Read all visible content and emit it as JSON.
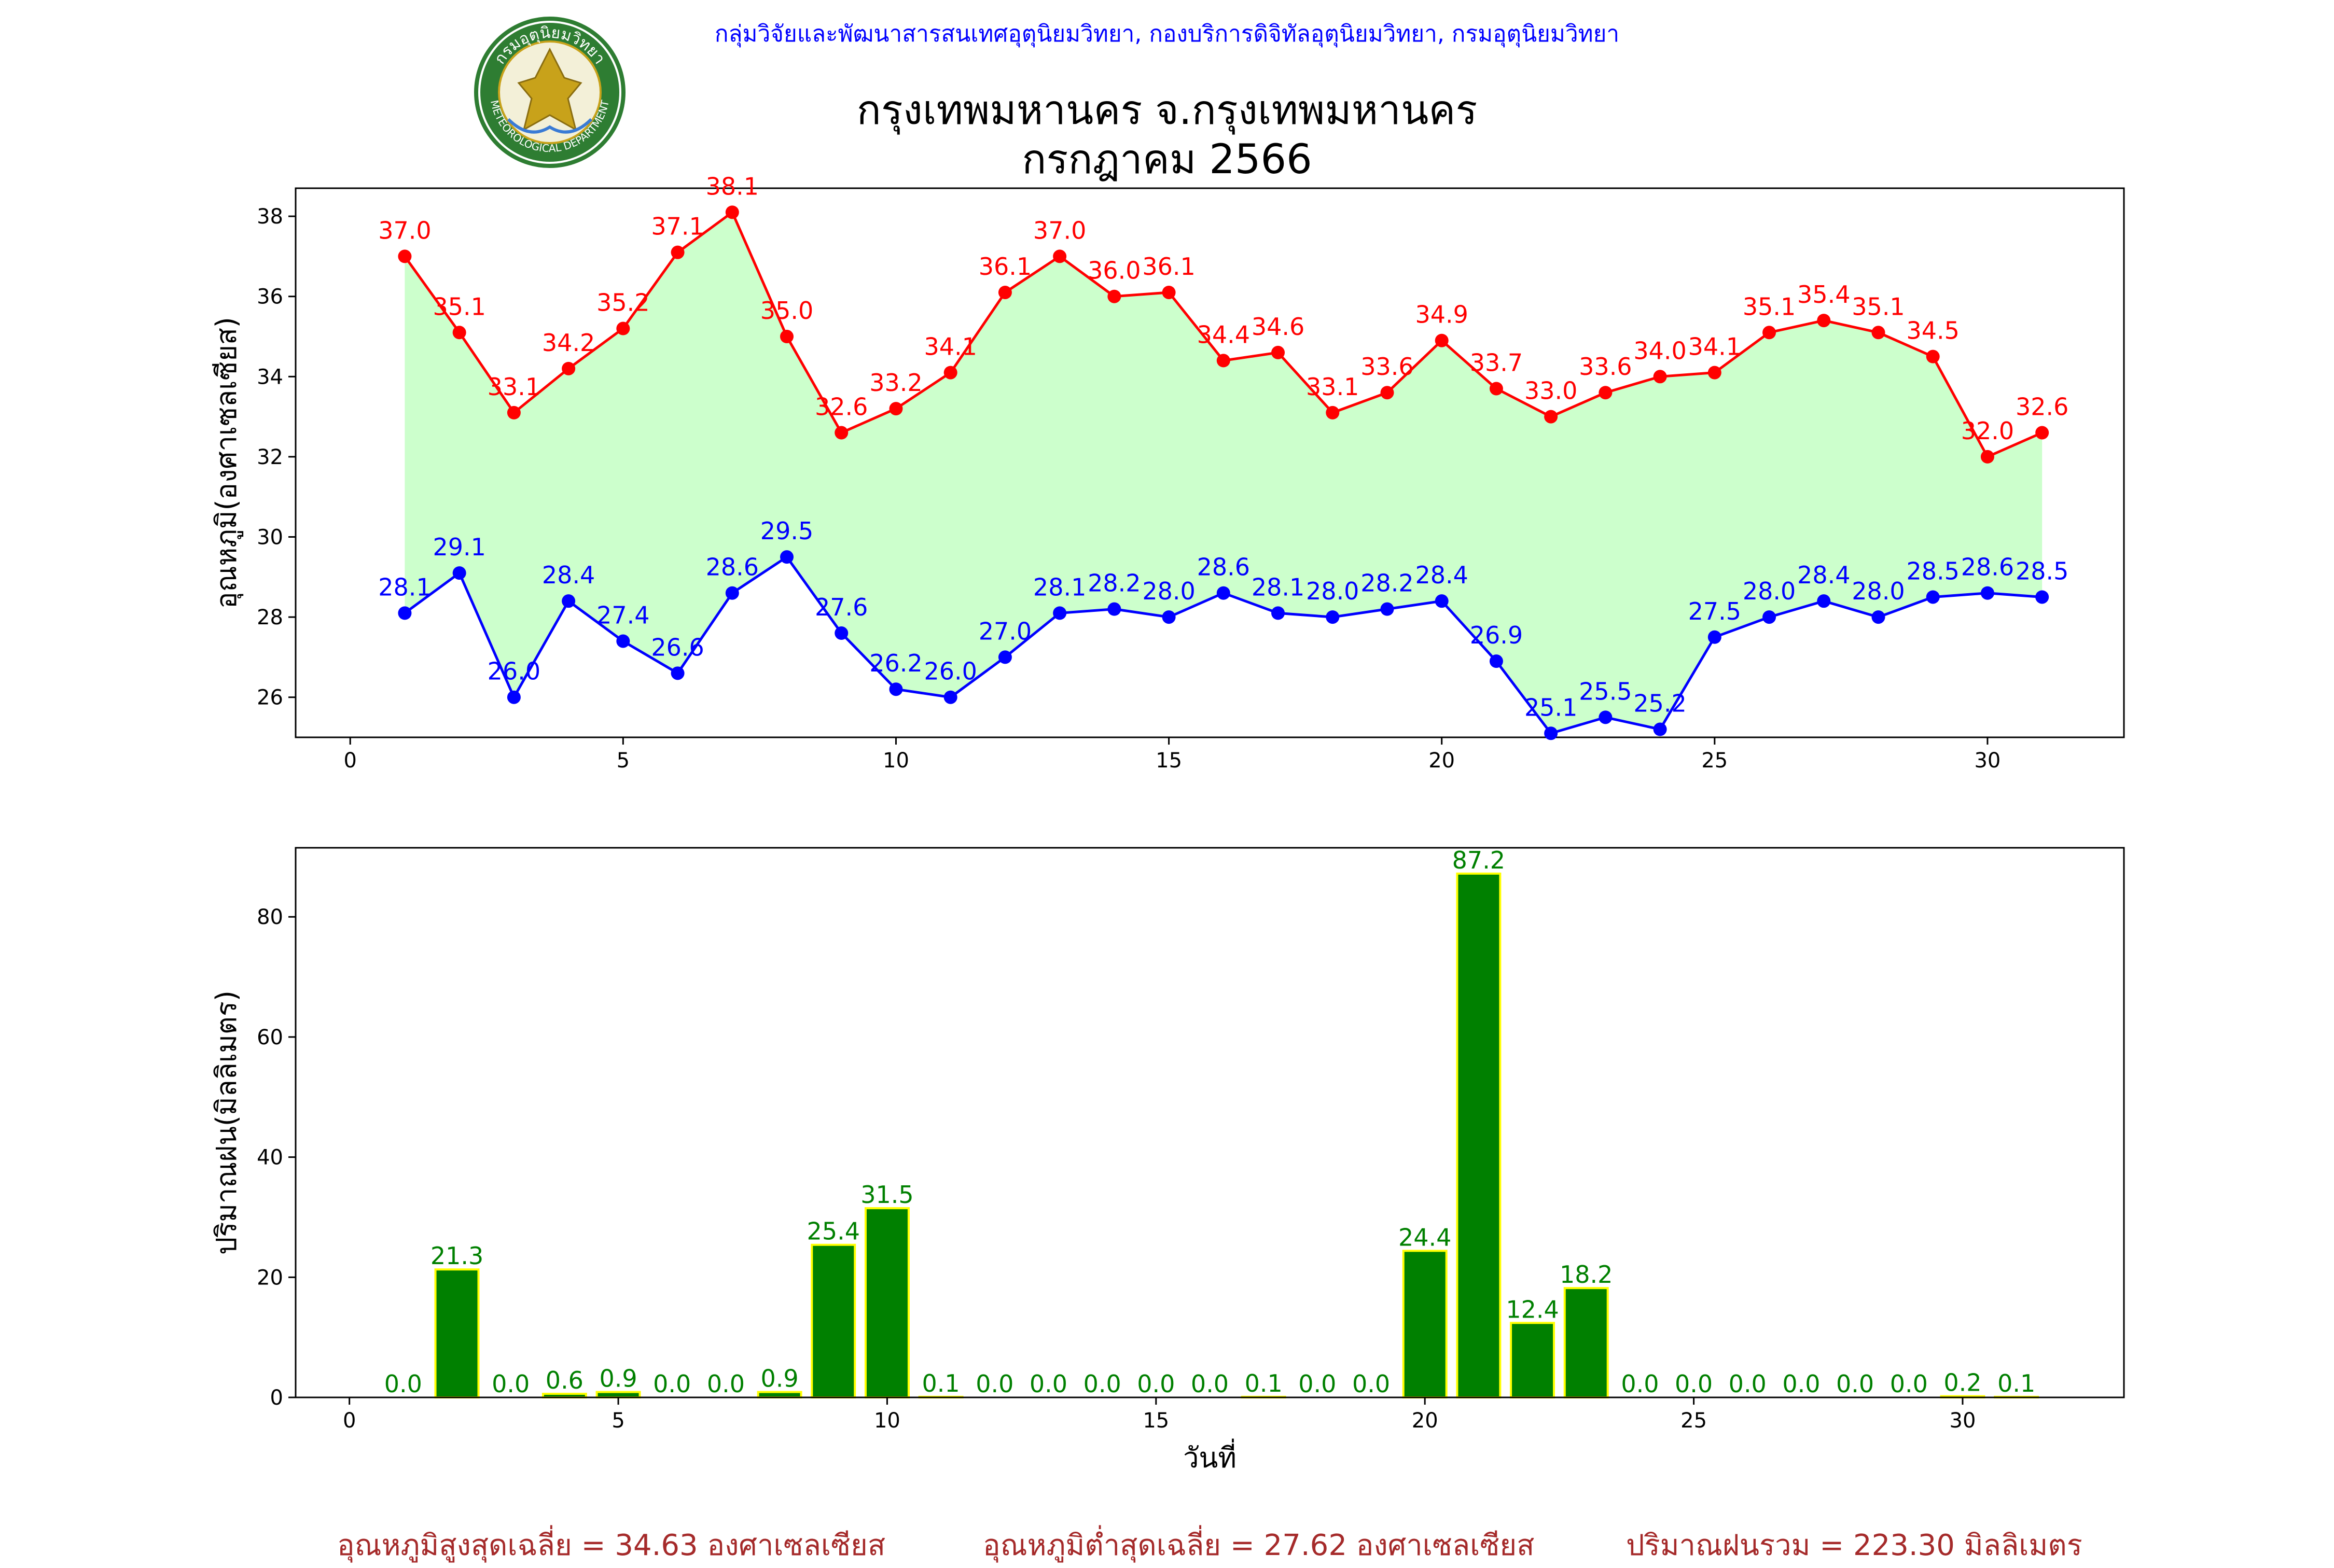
{
  "header": {
    "org_line": "กลุ่มวิจัยและพัฒนาสารสนเทศอุตุนิยมวิทยา, กองบริการดิจิทัลอุตุนิยมวิทยา, กรมอุตุนิยมวิทยา",
    "title_line1": "กรุงเทพมหานคร จ.กรุงเทพมหานคร",
    "title_line2": "กรกฎาคม 2566",
    "logo_text_top": "กรมอุตุนิยมวิทยา",
    "logo_text_bottom": "METEOROLOGICAL DEPARTMENT"
  },
  "chart_data": [
    {
      "type": "line",
      "ylabel": "อุณหภูมิ(องศาเซลเซียส)",
      "xlabel": "",
      "xlim": [
        -1,
        32.5
      ],
      "ylim": [
        25,
        38.7
      ],
      "xticks": [
        0,
        5,
        10,
        15,
        20,
        25,
        30
      ],
      "yticks": [
        26,
        28,
        30,
        32,
        34,
        36,
        38
      ],
      "fill_between": true,
      "fill_color": "#ccffcc",
      "x": [
        1,
        2,
        3,
        4,
        5,
        6,
        7,
        8,
        9,
        10,
        11,
        12,
        13,
        14,
        15,
        16,
        17,
        18,
        19,
        20,
        21,
        22,
        23,
        24,
        25,
        26,
        27,
        28,
        29,
        30,
        31
      ],
      "series": [
        {
          "color": "#ff0000",
          "values": [
            37.0,
            35.1,
            33.1,
            34.2,
            35.2,
            37.1,
            38.1,
            35.0,
            32.6,
            33.2,
            34.1,
            36.1,
            37.0,
            36.0,
            36.1,
            34.4,
            34.6,
            33.1,
            33.6,
            34.9,
            33.7,
            33.0,
            33.6,
            34.0,
            34.1,
            35.1,
            35.4,
            35.1,
            34.5,
            32.0,
            32.6
          ]
        },
        {
          "color": "#0000ff",
          "values": [
            28.1,
            29.1,
            26.0,
            28.4,
            27.4,
            26.6,
            28.6,
            29.5,
            27.6,
            26.2,
            26.0,
            27.0,
            28.1,
            28.2,
            28.0,
            28.6,
            28.1,
            28.0,
            28.2,
            28.4,
            26.9,
            25.1,
            25.5,
            25.2,
            27.5,
            28.0,
            28.4,
            28.0,
            28.5,
            28.6,
            28.5
          ]
        }
      ]
    },
    {
      "type": "bar",
      "ylabel": "ปริมาณฝน(มิลลิเมตร)",
      "xlabel": "วันที่",
      "xlim": [
        -1,
        33
      ],
      "ylim": [
        0,
        91.5
      ],
      "xticks": [
        0,
        5,
        10,
        15,
        20,
        25,
        30
      ],
      "yticks": [
        0,
        20,
        40,
        60,
        80
      ],
      "bar_color": "#008000",
      "edge_color": "#ffff00",
      "label_color": "#008000",
      "x": [
        1,
        2,
        3,
        4,
        5,
        6,
        7,
        8,
        9,
        10,
        11,
        12,
        13,
        14,
        15,
        16,
        17,
        18,
        19,
        20,
        21,
        22,
        23,
        24,
        25,
        26,
        27,
        28,
        29,
        30,
        31
      ],
      "values": [
        0.0,
        21.3,
        0.0,
        0.6,
        0.9,
        0.0,
        0.0,
        0.9,
        25.4,
        31.5,
        0.1,
        0.0,
        0.0,
        0.0,
        0.0,
        0.0,
        0.1,
        0.0,
        0.0,
        24.4,
        87.2,
        12.4,
        18.2,
        0.0,
        0.0,
        0.0,
        0.0,
        0.0,
        0.0,
        0.2,
        0.1
      ]
    }
  ],
  "summary": {
    "max_avg": "อุณหภูมิสูงสุดเฉลี่ย = 34.63 องศาเซลเซียส",
    "min_avg": "อุณหภูมิต่ำสุดเฉลี่ย = 27.62 องศาเซลเซียส",
    "rain_total": "ปริมาณฝนรวม = 223.30 มิลลิเมตร"
  },
  "colors": {
    "header_text": "#0000ff",
    "footer_text": "#a52a2a",
    "logo_green": "#2e7d32",
    "logo_gold": "#c8a21a"
  }
}
